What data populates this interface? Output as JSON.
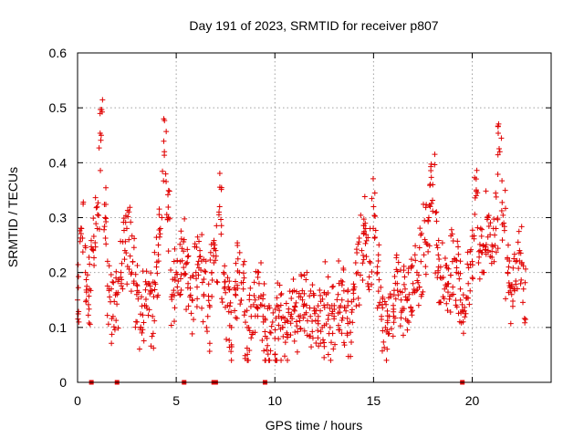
{
  "colors": {
    "series": "#e00000",
    "grid": "#a0a0a0",
    "axis": "#000000"
  },
  "chart_data": {
    "type": "scatter",
    "title": "Day 191 of 2023, SRMTID for receiver p807",
    "xlabel": "GPS time / hours",
    "ylabel": "SRMTID / TECUs",
    "xlim": [
      0,
      24
    ],
    "ylim": [
      0,
      0.6
    ],
    "x_ticks": [
      0,
      5,
      10,
      15,
      20
    ],
    "x_tick_labels": [
      "0",
      "5",
      "10",
      "15",
      "20"
    ],
    "y_ticks": [
      0,
      0.1,
      0.2,
      0.3,
      0.4,
      0.5,
      0.6
    ],
    "y_tick_labels": [
      "0",
      "0.1",
      "0.2",
      "0.3",
      "0.4",
      "0.5",
      "0.6"
    ],
    "grid": true,
    "marker": "plus",
    "zero_markers_x": [
      0.7,
      2.0,
      5.4,
      6.9,
      7.0,
      9.5,
      19.5
    ],
    "series": [
      {
        "name": "SRMTID",
        "x": [
          0.0,
          0.2,
          0.4,
          0.6,
          0.8,
          1.0,
          1.2,
          1.4,
          1.6,
          1.8,
          2.0,
          2.2,
          2.4,
          2.6,
          2.8,
          3.0,
          3.2,
          3.4,
          3.6,
          3.8,
          4.0,
          4.2,
          4.4,
          4.6,
          4.8,
          5.0,
          5.2,
          5.4,
          5.6,
          5.8,
          6.0,
          6.2,
          6.4,
          6.6,
          6.8,
          7.0,
          7.2,
          7.4,
          7.6,
          7.8,
          8.0,
          8.2,
          8.4,
          8.6,
          8.8,
          9.0,
          9.2,
          9.4,
          9.6,
          9.8,
          10.0,
          10.2,
          10.4,
          10.6,
          10.8,
          11.0,
          11.2,
          11.4,
          11.6,
          11.8,
          12.0,
          12.2,
          12.4,
          12.6,
          12.8,
          13.0,
          13.2,
          13.4,
          13.6,
          13.8,
          14.0,
          14.2,
          14.4,
          14.6,
          14.8,
          15.0,
          15.2,
          15.4,
          15.6,
          15.8,
          16.0,
          16.2,
          16.4,
          16.6,
          16.8,
          17.0,
          17.2,
          17.4,
          17.6,
          17.8,
          18.0,
          18.2,
          18.4,
          18.6,
          18.8,
          19.0,
          19.2,
          19.4,
          19.6,
          19.8,
          20.0,
          20.2,
          20.4,
          20.6,
          20.8,
          21.0,
          21.2,
          21.4,
          21.6,
          21.8,
          22.0,
          22.2,
          22.4,
          22.6
        ],
        "y": [
          0.15,
          0.28,
          0.2,
          0.17,
          0.24,
          0.28,
          0.45,
          0.3,
          0.17,
          0.12,
          0.16,
          0.2,
          0.24,
          0.26,
          0.22,
          0.16,
          0.1,
          0.14,
          0.18,
          0.12,
          0.21,
          0.28,
          0.42,
          0.3,
          0.16,
          0.2,
          0.22,
          0.26,
          0.18,
          0.15,
          0.2,
          0.24,
          0.16,
          0.12,
          0.2,
          0.24,
          0.32,
          0.2,
          0.14,
          0.1,
          0.16,
          0.2,
          0.17,
          0.1,
          0.12,
          0.15,
          0.18,
          0.12,
          0.08,
          0.09,
          0.08,
          0.12,
          0.1,
          0.09,
          0.12,
          0.13,
          0.12,
          0.15,
          0.14,
          0.12,
          0.13,
          0.12,
          0.1,
          0.16,
          0.1,
          0.12,
          0.16,
          0.15,
          0.13,
          0.11,
          0.17,
          0.2,
          0.24,
          0.28,
          0.22,
          0.32,
          0.2,
          0.12,
          0.1,
          0.12,
          0.14,
          0.18,
          0.15,
          0.17,
          0.16,
          0.18,
          0.2,
          0.22,
          0.26,
          0.3,
          0.36,
          0.25,
          0.21,
          0.17,
          0.18,
          0.22,
          0.2,
          0.17,
          0.13,
          0.18,
          0.22,
          0.34,
          0.24,
          0.2,
          0.3,
          0.25,
          0.28,
          0.42,
          0.29,
          0.2,
          0.16,
          0.22,
          0.24,
          0.17
        ]
      }
    ]
  }
}
